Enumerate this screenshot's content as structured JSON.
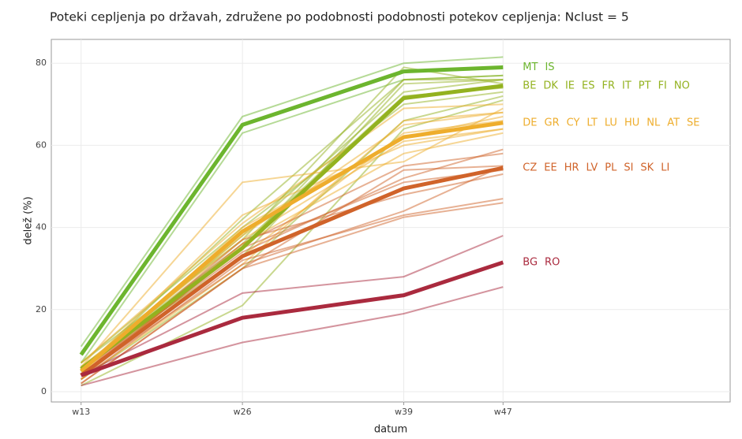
{
  "chart_data": {
    "type": "line",
    "title": "Poteki cepljenja po državah, združene po podobnosti podobnosti potekov cepljenja: Nclust = 5",
    "xlabel": "datum",
    "ylabel": "delež (%)",
    "x": [
      13,
      26,
      39,
      47
    ],
    "xlim": [
      10.6,
      65.3
    ],
    "xticks": [
      {
        "value": 13,
        "label": "w13"
      },
      {
        "value": 26,
        "label": "w26"
      },
      {
        "value": 39,
        "label": "w39"
      },
      {
        "value": 47,
        "label": "w47"
      }
    ],
    "ylim": [
      -2.5,
      85.8
    ],
    "yticks": [
      0,
      20,
      40,
      60,
      80
    ],
    "grid": true,
    "clusters": [
      {
        "color": "#6cb52e",
        "mean": [
          9,
          65,
          78,
          79
        ],
        "members": [
          {
            "name": "MT",
            "values": [
              11,
              67,
              80,
              81.5
            ]
          },
          {
            "name": "IS",
            "values": [
              7,
              63,
              76,
              77
            ]
          }
        ]
      },
      {
        "color": "#93b21f",
        "mean": [
          5.5,
          35,
          71.5,
          74.5
        ],
        "members": [
          {
            "name": "BE",
            "values": [
              5,
              38,
              73,
              76
            ]
          },
          {
            "name": "DK",
            "values": [
              4,
              35,
              76,
              77
            ]
          },
          {
            "name": "IE",
            "values": [
              6,
              33,
              75,
              76
            ]
          },
          {
            "name": "ES",
            "values": [
              7,
              37,
              79,
              75
            ]
          },
          {
            "name": "FR",
            "values": [
              3,
              30,
              66,
              72
            ]
          },
          {
            "name": "IT",
            "values": [
              6,
              36,
              72,
              74
            ]
          },
          {
            "name": "PT",
            "values": [
              5,
              42,
              76,
              76
            ]
          },
          {
            "name": "FI",
            "values": [
              1.5,
              21,
              64,
              71
            ]
          },
          {
            "name": "NO",
            "values": [
              7,
              40,
              70,
              73
            ]
          }
        ]
      },
      {
        "color": "#eead2c",
        "mean": [
          5,
          39,
          62,
          65.5
        ],
        "members": [
          {
            "name": "DE",
            "values": [
              4,
              40,
              62,
              67
            ]
          },
          {
            "name": "GR",
            "values": [
              3,
              36,
              58,
              63
            ]
          },
          {
            "name": "CY",
            "values": [
              6,
              51,
              56,
              69
            ]
          },
          {
            "name": "LT",
            "values": [
              5,
              43,
              60,
              64
            ]
          },
          {
            "name": "LU",
            "values": [
              5,
              38,
              65,
              68
            ]
          },
          {
            "name": "HU",
            "values": [
              7,
              41,
              69,
              70
            ]
          },
          {
            "name": "NL",
            "values": [
              4,
              33,
              63,
              66
            ]
          },
          {
            "name": "AT",
            "values": [
              6,
              37,
              61,
              64
            ]
          },
          {
            "name": "SE",
            "values": [
              3,
              31,
              66,
              68
            ]
          }
        ]
      },
      {
        "color": "#d0632a",
        "mean": [
          4,
          33,
          49.5,
          54.5
        ],
        "members": [
          {
            "name": "CZ",
            "values": [
              5,
              34,
              52,
              59
            ]
          },
          {
            "name": "EE",
            "values": [
              4,
              31,
              44,
              55
            ]
          },
          {
            "name": "HR",
            "values": [
              3,
              32,
              43,
              47
            ]
          },
          {
            "name": "LV",
            "values": [
              2,
              30,
              42.5,
              46
            ]
          },
          {
            "name": "PL",
            "values": [
              5,
              36,
              55,
              58
            ]
          },
          {
            "name": "SI",
            "values": [
              4,
              35,
              51,
              54
            ]
          },
          {
            "name": "SK",
            "values": [
              4,
              37,
              48,
              53
            ]
          },
          {
            "name": "LI",
            "values": [
              2,
              30,
              54,
              55
            ]
          }
        ]
      },
      {
        "color": "#aa2a3e",
        "mean": [
          4,
          18,
          23.5,
          31.5
        ],
        "members": [
          {
            "name": "BG",
            "values": [
              1.5,
              12,
              19,
              25.5
            ]
          },
          {
            "name": "RO",
            "values": [
              4,
              24,
              28,
              38
            ]
          }
        ]
      }
    ]
  }
}
